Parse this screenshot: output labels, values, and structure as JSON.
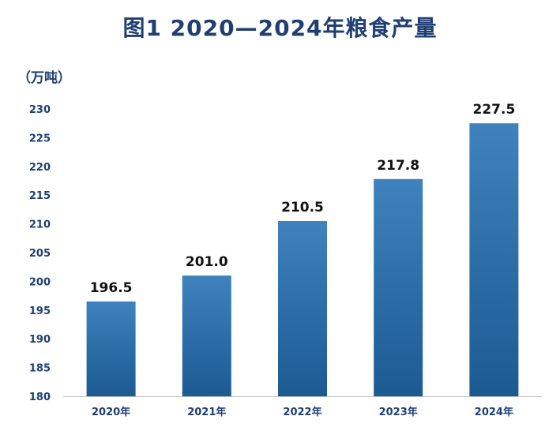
{
  "chart_data": {
    "type": "bar",
    "title": "图1   2020—2024年粮食产量",
    "ylabel": "（万吨）",
    "xlabel": "",
    "categories": [
      "2020年",
      "2021年",
      "2022年",
      "2023年",
      "2024年"
    ],
    "values": [
      196.5,
      201.0,
      210.5,
      217.8,
      227.5
    ],
    "value_labels": [
      "196.5",
      "201.0",
      "210.5",
      "217.8",
      "227.5"
    ],
    "ylim": [
      180,
      230
    ],
    "yticks": [
      180,
      185,
      190,
      195,
      200,
      205,
      210,
      215,
      220,
      225,
      230
    ],
    "grid": false,
    "legend": "none",
    "colors": {
      "bar_top": "#3f82bd",
      "bar_bottom": "#1c5a93",
      "text": "#1f3f73",
      "axis": "#bfbfbf"
    }
  }
}
